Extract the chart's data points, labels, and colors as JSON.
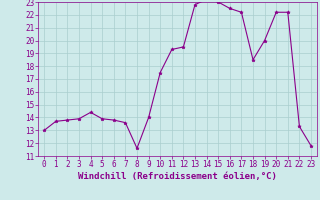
{
  "x": [
    0,
    1,
    2,
    3,
    4,
    5,
    6,
    7,
    8,
    9,
    10,
    11,
    12,
    13,
    14,
    15,
    16,
    17,
    18,
    19,
    20,
    21,
    22,
    23
  ],
  "y": [
    13.0,
    13.7,
    13.8,
    13.9,
    14.4,
    13.9,
    13.8,
    13.6,
    11.6,
    14.0,
    17.5,
    19.3,
    19.5,
    22.8,
    23.2,
    23.0,
    22.5,
    22.2,
    18.5,
    20.0,
    22.2,
    22.2,
    13.3,
    11.8
  ],
  "line_color": "#8B008B",
  "marker": "*",
  "marker_size": 2.5,
  "bg_color": "#ceeaea",
  "grid_color": "#aacece",
  "xlabel": "Windchill (Refroidissement éolien,°C)",
  "xlabel_color": "#8B008B",
  "xlabel_fontsize": 6.5,
  "tick_color": "#8B008B",
  "tick_fontsize": 5.5,
  "ylim": [
    11,
    23
  ],
  "xlim": [
    -0.5,
    23.5
  ],
  "yticks": [
    11,
    12,
    13,
    14,
    15,
    16,
    17,
    18,
    19,
    20,
    21,
    22,
    23
  ],
  "xticks": [
    0,
    1,
    2,
    3,
    4,
    5,
    6,
    7,
    8,
    9,
    10,
    11,
    12,
    13,
    14,
    15,
    16,
    17,
    18,
    19,
    20,
    21,
    22,
    23
  ]
}
